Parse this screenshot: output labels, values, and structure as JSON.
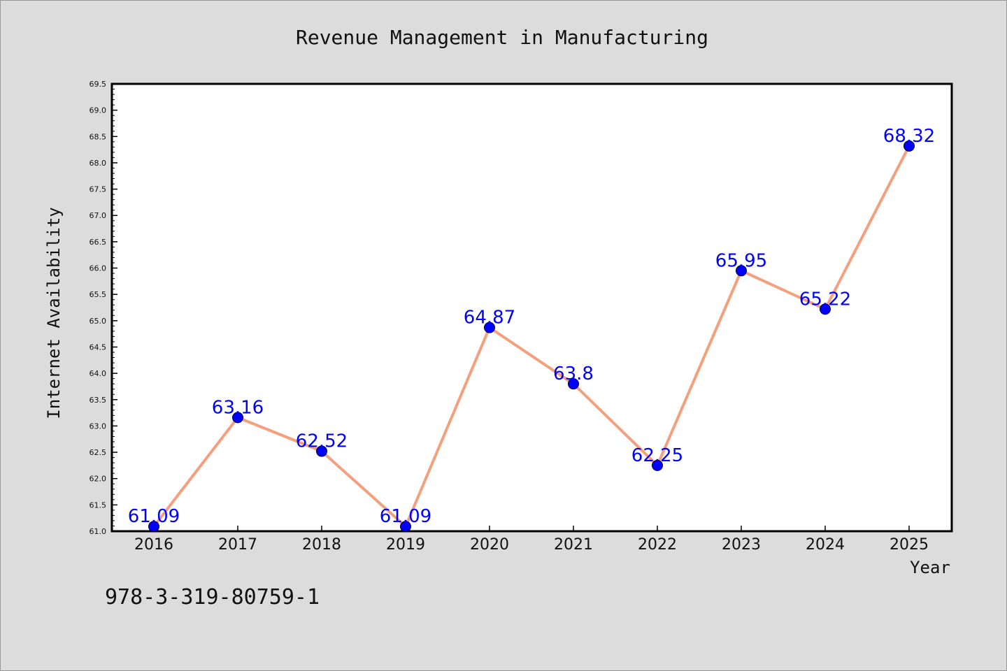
{
  "footer_text": "978-3-319-80759-1",
  "chart_data": {
    "type": "line",
    "title": "Revenue Management in Manufacturing",
    "xlabel": "Year",
    "ylabel": "Internet Availability",
    "categories": [
      "2016",
      "2017",
      "2018",
      "2019",
      "2020",
      "2021",
      "2022",
      "2023",
      "2024",
      "2025"
    ],
    "values": [
      61.09,
      63.16,
      62.52,
      61.09,
      64.87,
      63.8,
      62.25,
      65.95,
      65.22,
      68.32
    ],
    "data_labels": [
      "61.09",
      "63.16",
      "62.52",
      "61.09",
      "64.87",
      "63.8",
      "62.25",
      "65.95",
      "65.22",
      "68.32"
    ],
    "ylim": [
      61.0,
      69.5
    ],
    "yticks": [
      "61.0",
      "61.5",
      "62.0",
      "62.5",
      "63.0",
      "63.5",
      "64.0",
      "64.5",
      "65.0",
      "65.5",
      "66.0",
      "66.5",
      "67.0",
      "67.5",
      "68.0",
      "68.5",
      "69.0",
      "69.5"
    ],
    "grid": false,
    "line_color": "#f4a07e",
    "marker_color": "#0000ff",
    "label_color": "#0000ff"
  }
}
